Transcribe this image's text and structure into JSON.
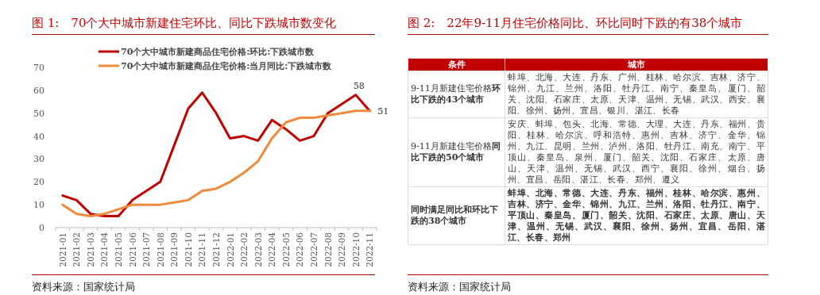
{
  "chart_data": [
    {
      "type": "line",
      "title": "图 1:　70个大中城市新建住宅环比、同比下跌城市数变化",
      "categories": [
        "2021-01",
        "2021-02",
        "2021-03",
        "2021-04",
        "2021-05",
        "2021-06",
        "2021-07",
        "2021-08",
        "2021-09",
        "2021-10",
        "2021-11",
        "2021-12",
        "2022-01",
        "2022-02",
        "2022-03",
        "2022-04",
        "2022-05",
        "2022-06",
        "2022-07",
        "2022-08",
        "2022-09",
        "2022-10",
        "2022-11"
      ],
      "series": [
        {
          "name": "70个大中城市新建商品住宅价格:环比:下跌城市数",
          "color": "#c00000",
          "values": [
            14,
            12,
            6,
            5,
            5,
            12,
            16,
            20,
            36,
            52,
            59,
            50,
            39,
            40,
            38,
            47,
            43,
            38,
            40,
            50,
            54,
            58,
            51
          ],
          "value_labels": [
            null,
            null,
            null,
            null,
            null,
            null,
            null,
            null,
            null,
            null,
            null,
            null,
            null,
            null,
            null,
            null,
            null,
            null,
            null,
            null,
            null,
            "58",
            null
          ]
        },
        {
          "name": "70个大中城市新建商品住宅价格:当月同比:下跌城市数",
          "color": "#f08a3c",
          "values": [
            10,
            6,
            5,
            6,
            8,
            10,
            10,
            10,
            11,
            12,
            16,
            17,
            20,
            24,
            29,
            39,
            46,
            48,
            48,
            49,
            50,
            51,
            51
          ],
          "value_labels": [
            null,
            null,
            null,
            null,
            null,
            null,
            null,
            null,
            null,
            null,
            null,
            null,
            null,
            null,
            null,
            null,
            null,
            null,
            null,
            null,
            null,
            null,
            "51"
          ]
        }
      ],
      "ylim": [
        0,
        70
      ],
      "yticks": [
        0,
        10,
        20,
        30,
        40,
        50,
        60,
        70
      ],
      "legend": "top",
      "annotations": [
        "资料来源：国家统计局"
      ]
    },
    {
      "type": "other",
      "title": "图 2:　22年9-11月住宅价格同比、环比同时下跌的有38个城市",
      "annotations": [
        "条件",
        "城市",
        "9-11月新建住宅价格**环比下跌的43个城市**",
        "蚌埠、北海、大连、丹东、广州、桂林、哈尔滨、吉林、济宁、锦州、九江、兰州、洛阳、牡丹江、南宁、秦皇岛、厦门、韶关、沈阳、石家庄、太原、天津、温州、无锡、武汉、西安、襄阳、徐州、扬州、宜昌、银川、湛江、长春",
        "9-11月新建住宅价格**同比下跌的50个城市**",
        "安庆、蚌埠、包头、北海、常德、大理、大连、丹东、福州、贵阳、桂林、哈尔滨、呼和浩特、惠州、吉林、济宁、金华、锦州、九江、昆明、兰州、泸州、洛阳、牡丹江、南充、南宁、平顶山、秦皇岛、泉州、厦门、韶关、沈阳、石家庄、太原、唐山、天津、温州、无锡、武汉、西宁、襄阳、徐州、烟台、扬州、宜昌、岳阳、湛江、长春、郑州、遵义",
        "**同时满足同比和环比下跌的38个城市**",
        "**蚌埠、北海、常德、大连、丹东、福州、桂林、哈尔滨、惠州、吉林、济宁、金华、锦州、九江、兰州、洛阳、牡丹江、南宁、平顶山、秦皇岛、厦门、韶关、沈阳、石家庄、太原、唐山、天津、温州、无锡、武汉、襄阳、徐州、扬州、宜昌、岳阳、湛江、长春、郑州**",
        "资料来源：国家统计局"
      ]
    }
  ]
}
